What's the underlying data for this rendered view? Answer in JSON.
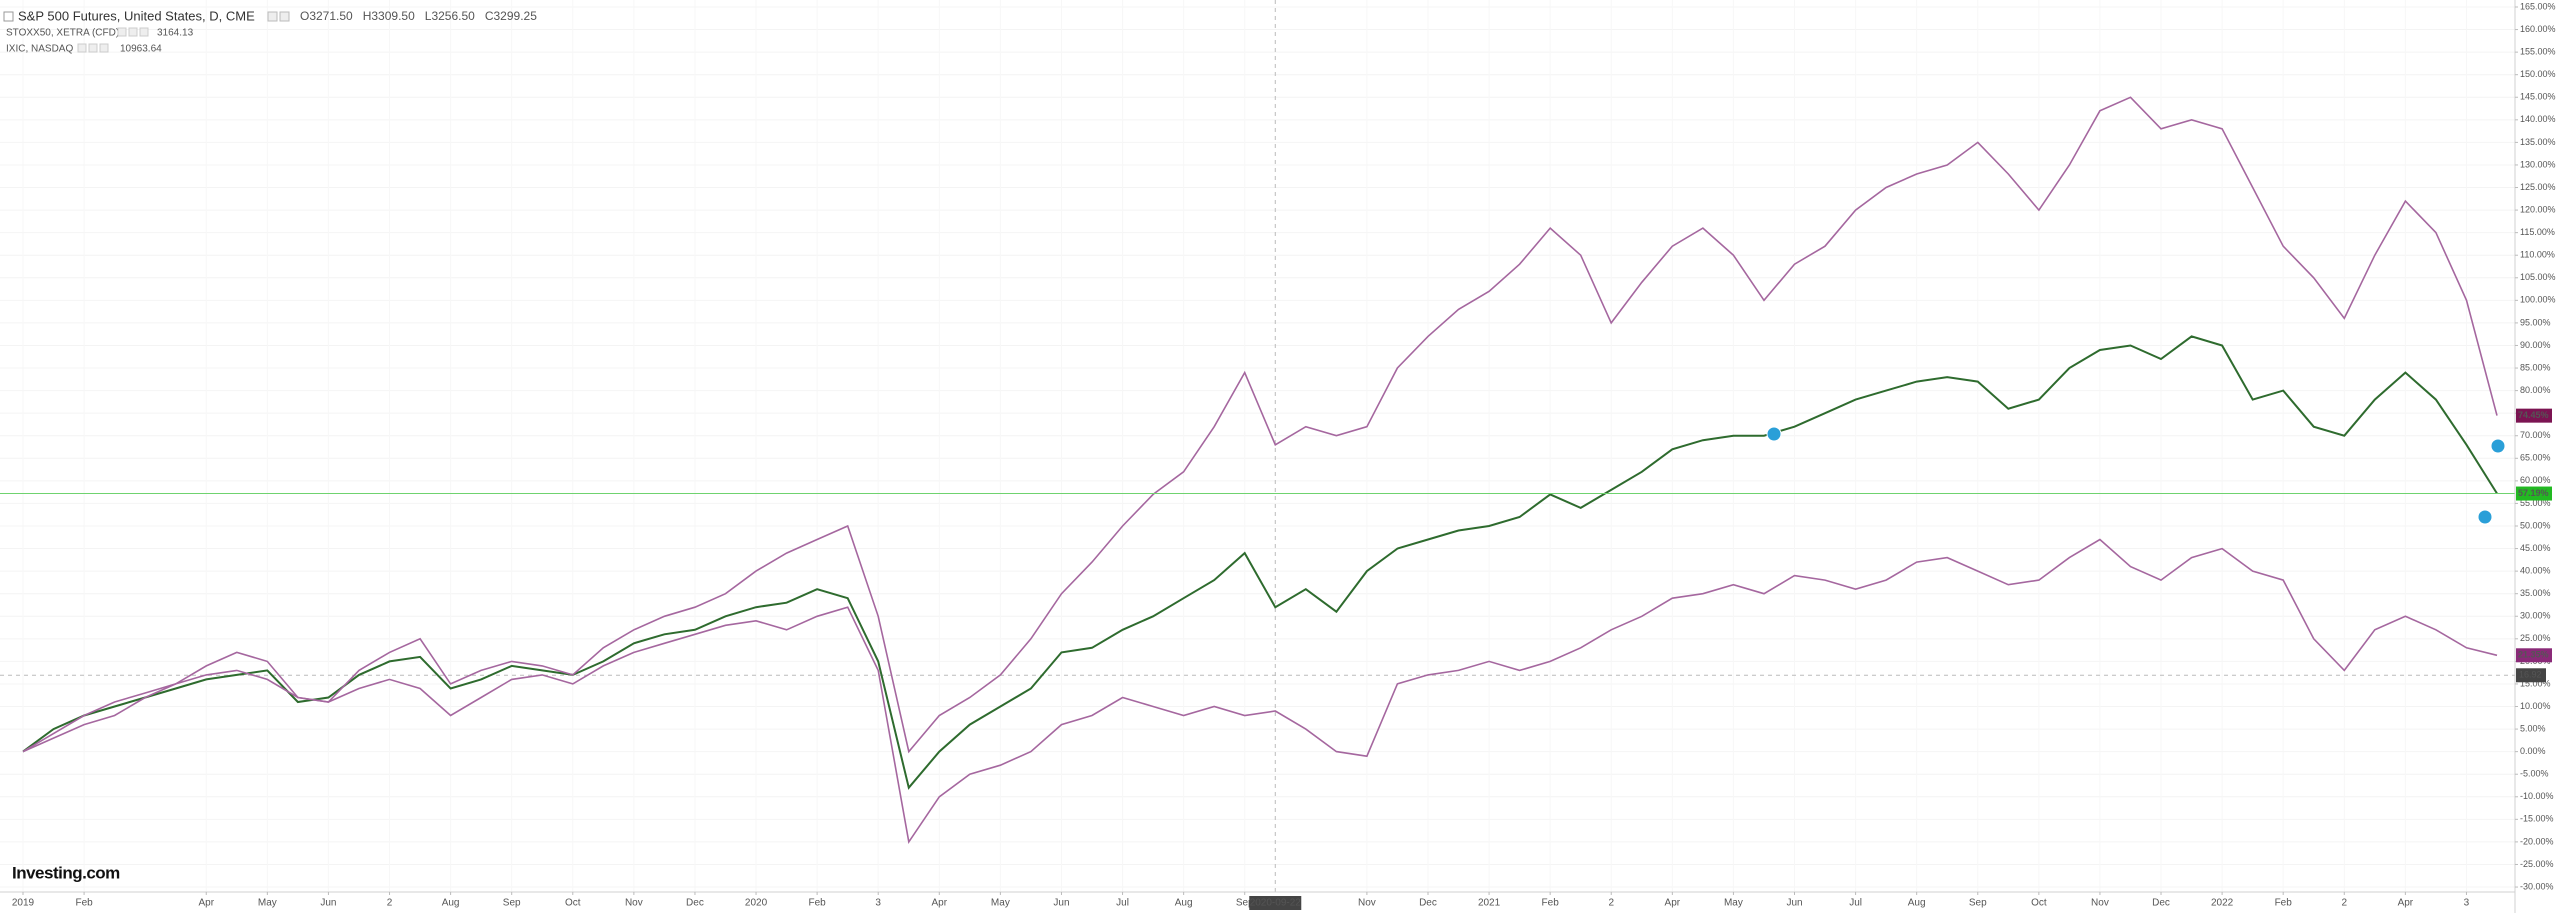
{
  "chart_data": {
    "type": "line",
    "grid": true,
    "categories": [
      "2019",
      null,
      "Feb",
      null,
      null,
      null,
      "Apr",
      null,
      "May",
      null,
      "Jun",
      null,
      "2",
      null,
      "Aug",
      null,
      "Sep",
      null,
      "Oct",
      null,
      "Nov",
      null,
      "Dec",
      null,
      "2020",
      null,
      "Feb",
      null,
      "3",
      null,
      "Apr",
      null,
      "May",
      null,
      "Jun",
      null,
      "Jul",
      null,
      "Aug",
      null,
      "Sep",
      "2020-09-22",
      null,
      null,
      "Nov",
      null,
      "Dec",
      null,
      "2021",
      null,
      "Feb",
      null,
      "2",
      null,
      "Apr",
      null,
      "May",
      null,
      "Jun",
      null,
      "Jul",
      null,
      "Aug",
      null,
      "Sep",
      null,
      "Oct",
      null,
      "Nov",
      null,
      "Dec",
      null,
      "2022",
      null,
      "Feb",
      null,
      "2",
      null,
      "Apr",
      null,
      "3",
      null
    ],
    "series": [
      {
        "name": "S&P 500 Futures, United States, D, CME",
        "color": "#2e6b2e",
        "label_color": "#22b922",
        "ohlc": [
          {
            "value": 3271.5,
            "label": "O3271.50"
          },
          {
            "value": 3309.5,
            "label": "H3309.50"
          },
          {
            "value": 3256.5,
            "label": "L3256.50"
          },
          {
            "value": 3299.25,
            "label": "C3299.25"
          }
        ],
        "last_label": "57.19%",
        "values": [
          0,
          5,
          8,
          10,
          12,
          14,
          16,
          17,
          18,
          11,
          12,
          17,
          20,
          21,
          14,
          16,
          19,
          18,
          17,
          20,
          24,
          26,
          27,
          30,
          32,
          33,
          36,
          34,
          20,
          -8,
          0,
          6,
          10,
          14,
          22,
          23,
          27,
          30,
          34,
          38,
          44,
          32,
          36,
          31,
          40,
          45,
          47,
          49,
          50,
          52,
          57,
          54,
          58,
          62,
          67,
          69,
          70,
          70,
          72,
          75,
          78,
          80,
          82,
          83,
          82,
          76,
          78,
          85,
          89,
          90,
          87,
          92,
          90,
          78,
          80,
          72,
          70,
          78,
          84,
          78,
          68,
          57.19
        ]
      },
      {
        "name": "STOXX50, XETRA (CFD)",
        "color": "#a5679f",
        "label_color": "#8a2a78",
        "quote": 3164.13,
        "last_label": "21.35%",
        "values": [
          0,
          3,
          6,
          8,
          12,
          15,
          17,
          18,
          16,
          12,
          11,
          14,
          16,
          14,
          8,
          12,
          16,
          17,
          15,
          19,
          22,
          24,
          26,
          28,
          29,
          27,
          30,
          32,
          18,
          -20,
          -10,
          -5,
          -3,
          0,
          6,
          8,
          12,
          10,
          8,
          10,
          8,
          9,
          5,
          0,
          -1,
          15,
          17,
          18,
          20,
          18,
          20,
          23,
          27,
          30,
          34,
          35,
          37,
          35,
          39,
          38,
          36,
          38,
          42,
          43,
          40,
          37,
          38,
          43,
          47,
          41,
          38,
          43,
          45,
          40,
          38,
          25,
          18,
          27,
          30,
          27,
          23,
          21.35
        ]
      },
      {
        "name": "IXIC, NASDAQ",
        "color": "#a5679f",
        "label_color": "#7b1452",
        "quote": 10963.64,
        "last_label": "74.45%",
        "values": [
          0,
          4,
          8,
          11,
          13,
          15,
          19,
          22,
          20,
          12,
          11,
          18,
          22,
          25,
          15,
          18,
          20,
          19,
          17,
          23,
          27,
          30,
          32,
          35,
          40,
          44,
          47,
          50,
          30,
          0,
          8,
          12,
          17,
          25,
          35,
          42,
          50,
          57,
          62,
          72,
          84,
          68,
          72,
          70,
          72,
          85,
          92,
          98,
          102,
          108,
          116,
          110,
          95,
          104,
          112,
          116,
          110,
          100,
          108,
          112,
          120,
          125,
          128,
          130,
          135,
          128,
          120,
          130,
          142,
          145,
          138,
          140,
          138,
          125,
          112,
          105,
          96,
          110,
          122,
          115,
          100,
          74.45
        ]
      }
    ],
    "crosshair": {
      "x": "2020-09-22",
      "y": 16.92
    },
    "logo": "Investing.com",
    "ylim": [
      -31.1,
      166.55
    ],
    "yticks": [
      {
        "value": 165,
        "label": "165.00%"
      },
      {
        "value": 160,
        "label": "160.00%"
      },
      {
        "value": 155,
        "label": "155.00%"
      },
      {
        "value": 150,
        "label": "150.00%"
      },
      {
        "value": 145,
        "label": "145.00%"
      },
      {
        "value": 140,
        "label": "140.00%"
      },
      {
        "value": 135,
        "label": "135.00%"
      },
      {
        "value": 130,
        "label": "130.00%"
      },
      {
        "value": 125,
        "label": "125.00%"
      },
      {
        "value": 120,
        "label": "120.00%"
      },
      {
        "value": 115,
        "label": "115.00%"
      },
      {
        "value": 110,
        "label": "110.00%"
      },
      {
        "value": 105,
        "label": "105.00%"
      },
      {
        "value": 100,
        "label": "100.00%"
      },
      {
        "value": 95,
        "label": "95.00%"
      },
      {
        "value": 90,
        "label": "90.00%"
      },
      {
        "value": 85,
        "label": "85.00%"
      },
      {
        "value": 80,
        "label": "80.00%"
      },
      {
        "value": 75,
        "label": "75.00%"
      },
      {
        "value": 70,
        "label": "70.00%"
      },
      {
        "value": 65,
        "label": "65.00%"
      },
      {
        "value": 60,
        "label": "60.00%"
      },
      {
        "value": 55,
        "label": "55.00%"
      },
      {
        "value": 50,
        "label": "50.00%"
      },
      {
        "value": 45,
        "label": "45.00%"
      },
      {
        "value": 40,
        "label": "40.00%"
      },
      {
        "value": 35,
        "label": "35.00%"
      },
      {
        "value": 30,
        "label": "30.00%"
      },
      {
        "value": 25,
        "label": "25.00%"
      },
      {
        "value": 20,
        "label": "20.00%"
      },
      {
        "value": 15,
        "label": "15.00%"
      },
      {
        "value": 10,
        "label": "10.00%"
      },
      {
        "value": 5,
        "label": "5.00%"
      },
      {
        "value": 0,
        "label": "0.00%"
      },
      {
        "value": -5,
        "label": "-5.00%"
      },
      {
        "value": -10,
        "label": "-10.00%"
      },
      {
        "value": -15,
        "label": "-15.00%"
      },
      {
        "value": -20,
        "label": "-20.00%"
      },
      {
        "value": -25,
        "label": "-25.00%"
      },
      {
        "value": -30,
        "label": "-30.00%"
      }
    ]
  }
}
